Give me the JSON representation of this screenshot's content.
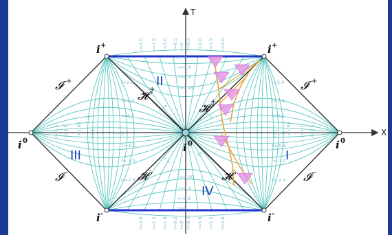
{
  "axes": {
    "time_label": "T",
    "space_label": "X"
  },
  "corners": {
    "future_left": "i",
    "future_left_sup": "+",
    "future_right": "i",
    "future_right_sup": "+",
    "past_left": "i",
    "past_left_sup": "-",
    "past_right": "i",
    "past_right_sup": "-",
    "spatial_left": "i",
    "spatial_left_sup": "0",
    "spatial_right": "i",
    "spatial_right_sup": "0",
    "center": "i",
    "center_sup": "0"
  },
  "scri": {
    "future_left": "𝓘",
    "future_left_sup": "+",
    "future_right": "𝓘",
    "future_right_sup": "+",
    "past_left": "𝓘",
    "past_left_sup": "-",
    "past_right": "𝓘",
    "past_right_sup": "-"
  },
  "horizons": {
    "future_left": "𝓗",
    "future_left_sup": "+",
    "future_right": "𝓗",
    "future_right_sup": "+",
    "past_left": "𝓗",
    "past_left_sup": "-",
    "past_right": "𝓗",
    "past_right_sup": "-"
  },
  "regions": {
    "I": "I",
    "II": "II",
    "III": "III",
    "IV": "IV"
  },
  "colors": {
    "background_frame": "#1f3f9a",
    "grid": "#5cc6c0",
    "outline": "#333333",
    "singularity": "#2233cc",
    "region_label": "#1a3fb0",
    "infaller": "#e8a23a",
    "cones": "#e58fe6"
  },
  "t_labels": [
    "t=0",
    "t=0.5",
    "t=1.0",
    "t=2.0",
    "t=-0.5",
    "t=-1.0",
    "t=-2.0",
    "t=∞",
    "t=-∞"
  ],
  "r_labels": [
    "r=0",
    "r=0.5",
    "r=0.8",
    "r=0.9",
    "r=0.95",
    "r=1",
    "r=1.05",
    "r=1.1",
    "r=1.5",
    "r=2.0"
  ],
  "top_r_labels": [
    "r=2.0",
    "r=1.5",
    "r=1.0",
    "r=0.5",
    "r=0",
    "r=0.5",
    "r=1.0",
    "r=1.5",
    "r=2.0"
  ],
  "bottom_r_labels": [
    "r=2.0",
    "r=1.5",
    "r=1.0",
    "r=0.5",
    "r=0",
    "r=0.5",
    "r=1.0",
    "r=1.5",
    "r=2.0"
  ],
  "central_t_labels": {
    "upper": "t=0",
    "lower": "t=0"
  },
  "singularity_labels": {
    "top": "r=0",
    "bottom": "r=0"
  }
}
